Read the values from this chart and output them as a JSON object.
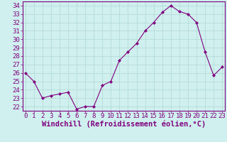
{
  "x": [
    0,
    1,
    2,
    3,
    4,
    5,
    6,
    7,
    8,
    9,
    10,
    11,
    12,
    13,
    14,
    15,
    16,
    17,
    18,
    19,
    20,
    21,
    22,
    23
  ],
  "y": [
    26.0,
    25.0,
    23.0,
    23.3,
    23.5,
    23.7,
    21.7,
    22.0,
    22.0,
    24.5,
    25.0,
    27.5,
    28.5,
    29.5,
    31.0,
    32.0,
    33.2,
    34.0,
    33.3,
    33.0,
    32.0,
    28.5,
    25.7,
    26.7
  ],
  "line_color": "#800080",
  "marker": "D",
  "marker_size": 2,
  "bg_color": "#cff0ee",
  "grid_color": "#b0d8d0",
  "xlabel": "Windchill (Refroidissement éolien,°C)",
  "xlabel_fontsize": 7.5,
  "tick_fontsize": 6.5,
  "ylim": [
    21.5,
    34.5
  ],
  "yticks": [
    22,
    23,
    24,
    25,
    26,
    27,
    28,
    29,
    30,
    31,
    32,
    33,
    34
  ],
  "xtick_labels": [
    "0",
    "1",
    "2",
    "3",
    "4",
    "5",
    "6",
    "7",
    "8",
    "9",
    "10",
    "11",
    "12",
    "13",
    "14",
    "15",
    "16",
    "17",
    "18",
    "19",
    "20",
    "21",
    "22",
    "23"
  ],
  "xticks": [
    0,
    1,
    2,
    3,
    4,
    5,
    6,
    7,
    8,
    9,
    10,
    11,
    12,
    13,
    14,
    15,
    16,
    17,
    18,
    19,
    20,
    21,
    22,
    23
  ],
  "xlim": [
    -0.3,
    23.3
  ]
}
